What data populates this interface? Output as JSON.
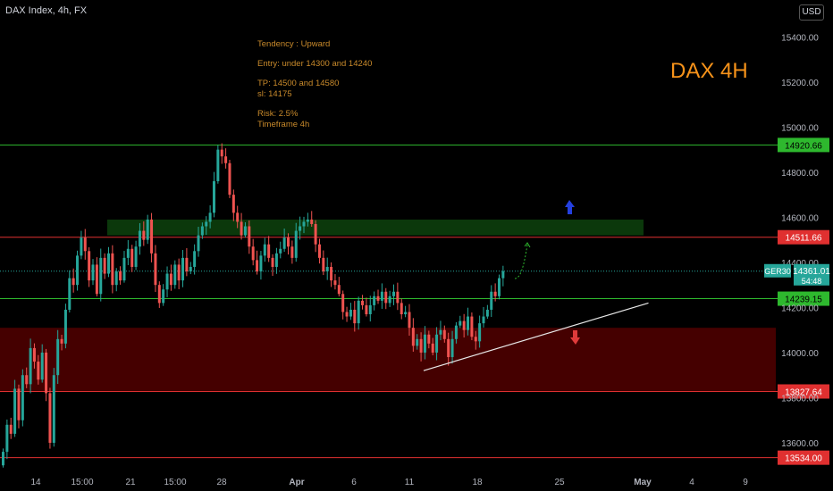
{
  "header": {
    "symbol_title": "DAX Index, 4h, FX",
    "currency": "USD"
  },
  "notes": {
    "tendency": "Tendency : Upward",
    "entry": "Entry: under 14300 and 14240",
    "tp": "TP: 14500  and 14580",
    "sl": "sl: 14175",
    "risk": "Risk: 2.5%",
    "timeframe": "Timeframe 4h"
  },
  "chart_title": "DAX 4H",
  "colors": {
    "up": "#26a69a",
    "down": "#ef5350",
    "green_line": "#2eb82e",
    "red_line": "#e03030",
    "support_zone": "#4d0000",
    "resistance_zone": "#0c3b0c",
    "trendline": "#e8e8e8",
    "arrow_up": "#2440e0",
    "arrow_down": "#e03b3b"
  },
  "chart_data": {
    "type": "candlestick",
    "ylim": [
      13520,
      15540
    ],
    "y_ticks": [
      13600,
      13800,
      14000,
      14200,
      14400,
      14600,
      14800,
      15000,
      15200,
      15400
    ],
    "y_tick_labels": [
      "13600.00",
      "13800.00",
      "14000.00",
      "14200.00",
      "14400.00",
      "14600.00",
      "14800.00",
      "15000.00",
      "15200.00",
      "15400.00"
    ],
    "x_ticks": [
      "14",
      "15:00",
      "21",
      "15:00",
      "28",
      "Apr",
      "6",
      "11",
      "18",
      "25",
      "May",
      "4",
      "9"
    ],
    "horizontal_levels": [
      {
        "value": 14920.66,
        "label": "14920.66",
        "color": "green"
      },
      {
        "value": 14511.66,
        "label": "14511.66",
        "color": "red"
      },
      {
        "value": 14239.15,
        "label": "14239.15",
        "color": "green"
      },
      {
        "value": 13827.64,
        "label": "13827.64",
        "color": "red"
      },
      {
        "value": 13534.0,
        "label": "13534.00",
        "color": "red"
      }
    ],
    "current_price": {
      "symbol": "GER30",
      "value": 14361.01,
      "label": "14361.01",
      "countdown": "54:48"
    },
    "zones": [
      {
        "type": "resistance",
        "from": 14520,
        "to": 14590
      },
      {
        "type": "support",
        "from": 13830,
        "to": 14110
      }
    ],
    "trendline": [
      {
        "bar": 108,
        "price": 13920
      },
      {
        "bar": 150,
        "price": 14220
      }
    ],
    "closes": [
      13560,
      13680,
      13640,
      13840,
      13700,
      13900,
      13860,
      14020,
      13960,
      13880,
      14000,
      13820,
      13600,
      13900,
      14060,
      14040,
      14190,
      14330,
      14300,
      14430,
      14510,
      14450,
      14320,
      14390,
      14260,
      14420,
      14350,
      14440,
      14300,
      14360,
      14320,
      14420,
      14460,
      14380,
      14470,
      14540,
      14500,
      14590,
      14440,
      14300,
      14220,
      14280,
      14350,
      14300,
      14390,
      14320,
      14420,
      14360,
      14380,
      14450,
      14520,
      14560,
      14580,
      14620,
      14760,
      14900,
      14870,
      14840,
      14700,
      14620,
      14580,
      14520,
      14560,
      14470,
      14410,
      14360,
      14430,
      14480,
      14420,
      14380,
      14440,
      14460,
      14510,
      14470,
      14420,
      14540,
      14560,
      14580,
      14590,
      14570,
      14480,
      14420,
      14360,
      14380,
      14320,
      14300,
      14260,
      14180,
      14160,
      14190,
      14130,
      14230,
      14210,
      14170,
      14210,
      14250,
      14230,
      14270,
      14220,
      14250,
      14270,
      14220,
      14170,
      14180,
      14110,
      14030,
      14060,
      14000,
      14080,
      14040,
      14000,
      14080,
      14100,
      14060,
      13980,
      14060,
      14120,
      14140,
      14100,
      14160,
      14070,
      14050,
      14130,
      14160,
      14190,
      14270,
      14250,
      14330,
      14361
    ]
  }
}
